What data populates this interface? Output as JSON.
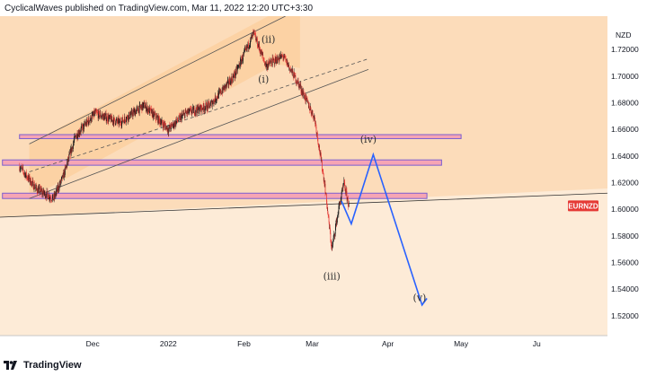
{
  "header": {
    "publish_line": "CyclicalWaves published on TradingView.com, Mar 11, 2022 12:20 UTC+3:30"
  },
  "footer": {
    "brand": "TradingView",
    "logo_icon": "tradingview-logo-icon"
  },
  "colors": {
    "bull_candle": "#1a1a1a",
    "bear_candle": "#e53935",
    "zone_fill": "#f6a5b4",
    "zone_border": "#7b5fd0",
    "projection": "#2962ff",
    "price_badge": "#e53935",
    "background_warm": "#fcdcba",
    "channel_fill": "#fbcf9f"
  },
  "chart_data": {
    "type": "candlestick",
    "symbol_label": "EURNZD",
    "currency_label": "NZD",
    "y_axis": {
      "min": 1.505,
      "max": 1.745,
      "ticks": [
        "1.72000",
        "1.70000",
        "1.68000",
        "1.66000",
        "1.64000",
        "1.62000",
        "1.60000",
        "1.58000",
        "1.56000",
        "1.54000",
        "1.52000"
      ]
    },
    "x_axis": {
      "ticks": [
        "Dec",
        "2022",
        "Feb",
        "Mar",
        "Apr",
        "May",
        "Ju"
      ]
    },
    "price_path": [
      [
        "2021-11-01",
        1.632
      ],
      [
        "2021-11-08",
        1.615
      ],
      [
        "2021-11-15",
        1.608
      ],
      [
        "2021-11-19",
        1.625
      ],
      [
        "2021-11-24",
        1.655
      ],
      [
        "2021-12-02",
        1.672
      ],
      [
        "2021-12-12",
        1.665
      ],
      [
        "2021-12-22",
        1.678
      ],
      [
        "2022-01-01",
        1.66
      ],
      [
        "2022-01-08",
        1.672
      ],
      [
        "2022-01-18",
        1.678
      ],
      [
        "2022-01-28",
        1.7
      ],
      [
        "2022-02-05",
        1.732
      ],
      [
        "2022-02-10",
        1.708
      ],
      [
        "2022-02-17",
        1.715
      ],
      [
        "2022-02-24",
        1.692
      ],
      [
        "2022-03-02",
        1.668
      ],
      [
        "2022-03-06",
        1.62
      ],
      [
        "2022-03-09",
        1.57
      ],
      [
        "2022-03-12",
        1.602
      ],
      [
        "2022-03-14",
        1.619
      ],
      [
        "2022-03-16",
        1.603
      ]
    ],
    "resistance_zones": [
      {
        "from": "2021-11-01",
        "to": "2022-05-01",
        "y0": 1.653,
        "y1": 1.656
      },
      {
        "from": "2021-10-25",
        "to": "2022-04-23",
        "y0": 1.633,
        "y1": 1.637
      },
      {
        "from": "2021-10-25",
        "to": "2022-04-17",
        "y0": 1.608,
        "y1": 1.612
      }
    ],
    "wave_labels": [
      {
        "text": "(ii)",
        "date": "2022-02-11",
        "price": 1.725
      },
      {
        "text": "(i)",
        "date": "2022-02-09",
        "price": 1.695
      },
      {
        "text": "(iii)",
        "date": "2022-03-09",
        "price": 1.547
      },
      {
        "text": "(iv)",
        "date": "2022-03-24",
        "price": 1.65
      },
      {
        "text": "(v)",
        "date": "2022-04-14",
        "price": 1.531
      }
    ],
    "projection": [
      [
        "2022-03-13",
        1.606
      ],
      [
        "2022-03-17",
        1.589
      ],
      [
        "2022-03-26",
        1.641
      ],
      [
        "2022-04-15",
        1.528
      ],
      [
        "2022-04-17",
        1.533
      ]
    ]
  }
}
